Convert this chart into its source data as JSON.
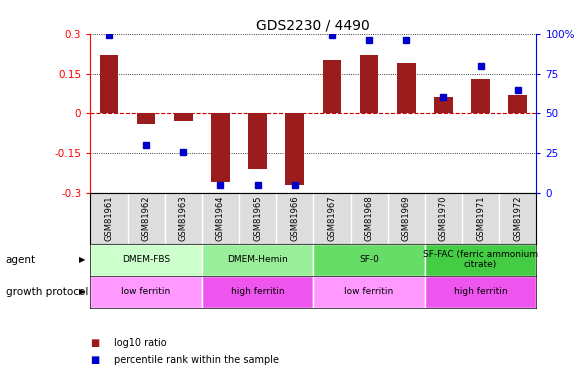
{
  "title": "GDS2230 / 4490",
  "samples": [
    "GSM81961",
    "GSM81962",
    "GSM81963",
    "GSM81964",
    "GSM81965",
    "GSM81966",
    "GSM81967",
    "GSM81968",
    "GSM81969",
    "GSM81970",
    "GSM81971",
    "GSM81972"
  ],
  "log10_ratio": [
    0.22,
    -0.04,
    -0.03,
    -0.26,
    -0.21,
    -0.27,
    0.2,
    0.22,
    0.19,
    0.06,
    0.13,
    0.07
  ],
  "percentile_rank": [
    99,
    30,
    26,
    5,
    5,
    5,
    99,
    96,
    96,
    60,
    80,
    65
  ],
  "ylim": [
    -0.3,
    0.3
  ],
  "yticks_left": [
    -0.3,
    -0.15,
    0,
    0.15,
    0.3
  ],
  "yticks_right": [
    0,
    25,
    50,
    75,
    100
  ],
  "bar_color": "#9B1C1C",
  "dot_color": "#0000CC",
  "hline_color": "#CC0000",
  "agent_groups": [
    {
      "label": "DMEM-FBS",
      "start": 0,
      "end": 3,
      "color": "#CCFFCC"
    },
    {
      "label": "DMEM-Hemin",
      "start": 3,
      "end": 6,
      "color": "#99EE99"
    },
    {
      "label": "SF-0",
      "start": 6,
      "end": 9,
      "color": "#66DD66"
    },
    {
      "label": "SF-FAC (ferric ammonium\ncitrate)",
      "start": 9,
      "end": 12,
      "color": "#44CC44"
    }
  ],
  "growth_groups": [
    {
      "label": "low ferritin",
      "start": 0,
      "end": 3,
      "color": "#FF99FF"
    },
    {
      "label": "high ferritin",
      "start": 3,
      "end": 6,
      "color": "#EE55EE"
    },
    {
      "label": "low ferritin",
      "start": 6,
      "end": 9,
      "color": "#FF99FF"
    },
    {
      "label": "high ferritin",
      "start": 9,
      "end": 12,
      "color": "#EE55EE"
    }
  ],
  "legend_items": [
    {
      "label": "log10 ratio",
      "color": "#9B1C1C"
    },
    {
      "label": "percentile rank within the sample",
      "color": "#0000CC"
    }
  ],
  "background_color": "#FFFFFF",
  "title_fontsize": 10,
  "tick_fontsize": 7.5,
  "label_fontsize": 8
}
